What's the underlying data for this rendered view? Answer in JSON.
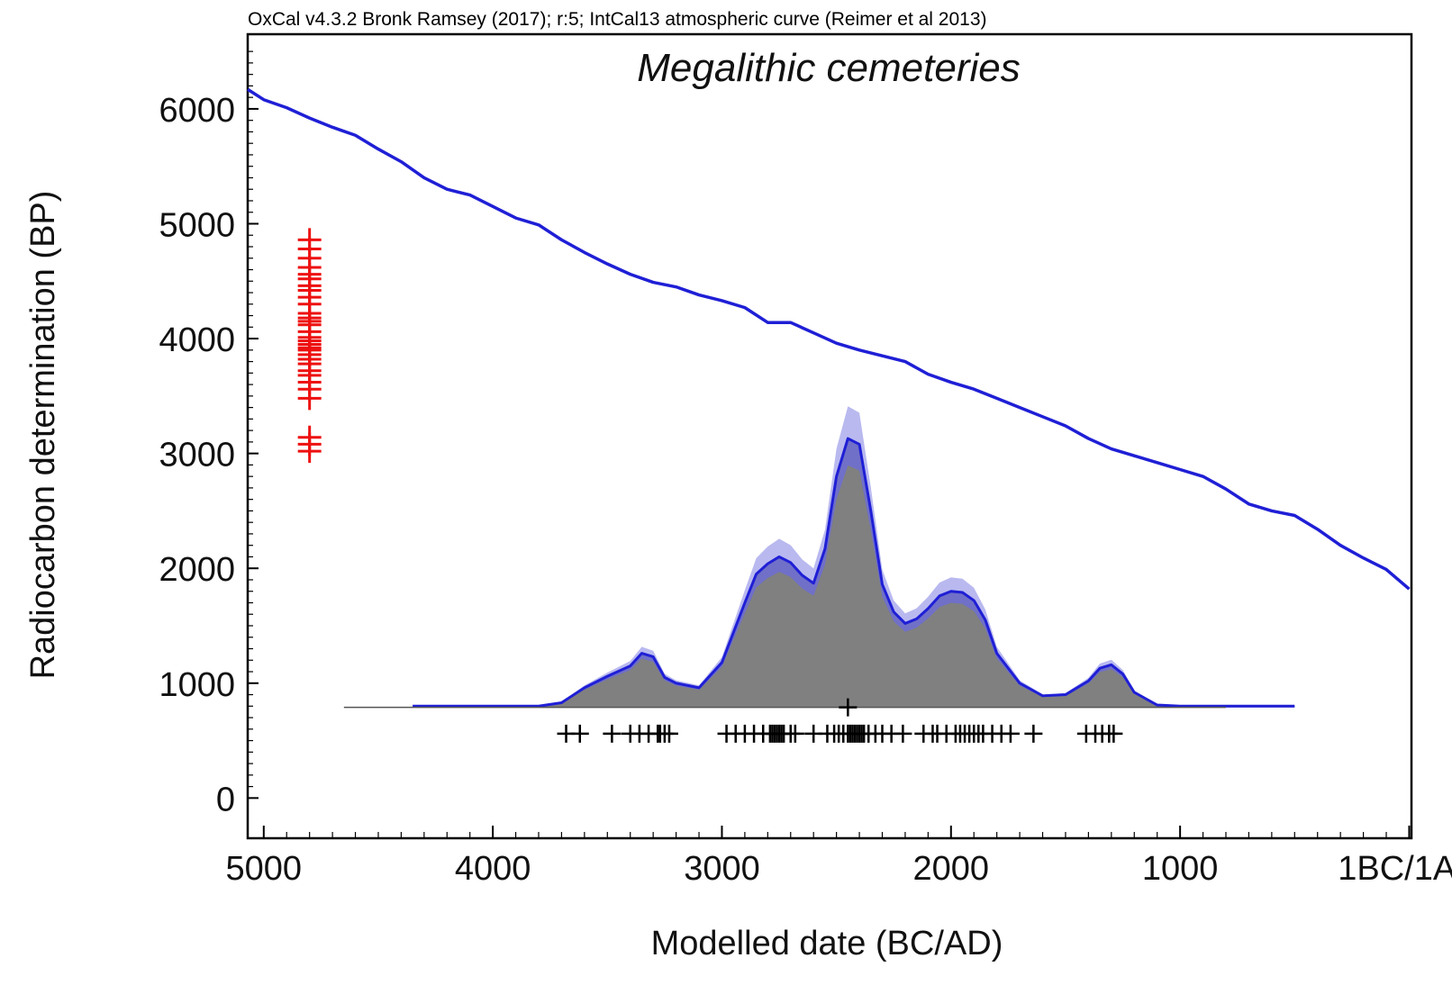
{
  "chart_data": {
    "type": "line",
    "header": "OxCal v4.3.2 Bronk Ramsey (2017); r:5; IntCal13 atmospheric curve (Reimer et al 2013)",
    "title": "Megalithic cemeteries",
    "xlabel": "Modelled date (BC/AD)",
    "ylabel": "Radiocarbon determination (BP)",
    "x_axis": {
      "range": [
        -5070,
        10
      ],
      "ticks": [
        -5000,
        -4000,
        -3000,
        -2000,
        -1000,
        0
      ],
      "tick_labels": [
        "5000",
        "4000",
        "3000",
        "2000",
        "1000",
        "1BC/1AD"
      ]
    },
    "y_axis": {
      "range": [
        -350,
        6650
      ],
      "ticks": [
        0,
        1000,
        2000,
        3000,
        4000,
        5000,
        6000
      ],
      "tick_labels": [
        "0",
        "1000",
        "2000",
        "3000",
        "4000",
        "5000",
        "6000"
      ]
    },
    "grid": false,
    "legend": "none",
    "colors": {
      "calibration_curve": "#1f1fd6",
      "sum_outline": "#1f1fd6",
      "sum_range": "#b9b9f0",
      "sum_modelled": "#7070c8",
      "sum_fill": "#808080",
      "c14_dates": "#ee1111",
      "date_markers": "#000000",
      "baseline": "#555555"
    },
    "series": [
      {
        "kind": "calibration_curve",
        "x": [
          -5070,
          -5000,
          -4900,
          -4800,
          -4700,
          -4600,
          -4500,
          -4400,
          -4300,
          -4200,
          -4100,
          -4000,
          -3900,
          -3800,
          -3700,
          -3600,
          -3500,
          -3400,
          -3300,
          -3200,
          -3100,
          -3000,
          -2900,
          -2800,
          -2700,
          -2600,
          -2500,
          -2400,
          -2300,
          -2200,
          -2100,
          -2000,
          -1900,
          -1800,
          -1700,
          -1600,
          -1500,
          -1400,
          -1300,
          -1200,
          -1100,
          -1000,
          -900,
          -800,
          -700,
          -600,
          -500,
          -400,
          -300,
          -200,
          -100,
          0
        ],
        "y": [
          6170,
          6080,
          6010,
          5920,
          5840,
          5770,
          5650,
          5540,
          5400,
          5300,
          5250,
          5150,
          5050,
          4990,
          4860,
          4750,
          4650,
          4560,
          4490,
          4450,
          4380,
          4330,
          4270,
          4140,
          4140,
          4050,
          3960,
          3900,
          3850,
          3800,
          3690,
          3620,
          3560,
          3480,
          3400,
          3320,
          3240,
          3130,
          3040,
          2980,
          2920,
          2860,
          2800,
          2690,
          2560,
          2500,
          2460,
          2340,
          2200,
          2090,
          1990,
          1820
        ]
      },
      {
        "kind": "summed_distribution",
        "x": [
          -4350,
          -4000,
          -3800,
          -3700,
          -3600,
          -3500,
          -3400,
          -3350,
          -3300,
          -3250,
          -3200,
          -3100,
          -3000,
          -2900,
          -2850,
          -2800,
          -2750,
          -2700,
          -2650,
          -2600,
          -2550,
          -2500,
          -2450,
          -2400,
          -2350,
          -2300,
          -2250,
          -2200,
          -2150,
          -2100,
          -2050,
          -2000,
          -1950,
          -1900,
          -1850,
          -1800,
          -1700,
          -1600,
          -1500,
          -1400,
          -1350,
          -1300,
          -1250,
          -1200,
          -1100,
          -1000,
          -500
        ],
        "y": [
          800,
          800,
          800,
          830,
          960,
          1060,
          1150,
          1260,
          1230,
          1050,
          1000,
          960,
          1180,
          1700,
          1950,
          2040,
          2100,
          2050,
          1940,
          1870,
          2170,
          2800,
          3130,
          3080,
          2500,
          1860,
          1620,
          1520,
          1560,
          1650,
          1760,
          1800,
          1790,
          1720,
          1550,
          1260,
          1000,
          890,
          900,
          1020,
          1130,
          1160,
          1080,
          920,
          810,
          800,
          800
        ]
      }
    ],
    "c14_dates": {
      "x": -4800,
      "values": [
        3020,
        3080,
        3140,
        3480,
        3560,
        3620,
        3680,
        3720,
        3780,
        3820,
        3860,
        3900,
        3920,
        3950,
        3980,
        4010,
        4060,
        4120,
        4150,
        4180,
        4220,
        4300,
        4360,
        4420,
        4460,
        4520,
        4560,
        4620,
        4700,
        4780,
        4860
      ]
    },
    "date_markers": {
      "y": 560,
      "x": [
        -3680,
        -3620,
        -3480,
        -3400,
        -3360,
        -3320,
        -3280,
        -3270,
        -3250,
        -3230,
        -2980,
        -2940,
        -2900,
        -2860,
        -2820,
        -2790,
        -2780,
        -2770,
        -2760,
        -2750,
        -2740,
        -2730,
        -2700,
        -2680,
        -2600,
        -2540,
        -2510,
        -2490,
        -2470,
        -2450,
        -2440,
        -2430,
        -2420,
        -2410,
        -2400,
        -2390,
        -2380,
        -2360,
        -2330,
        -2300,
        -2260,
        -2210,
        -2120,
        -2080,
        -2060,
        -2020,
        -1980,
        -1960,
        -1940,
        -1920,
        -1900,
        -1880,
        -1860,
        -1820,
        -1780,
        -1740,
        -1640,
        -1410,
        -1370,
        -1340,
        -1310,
        -1290
      ]
    },
    "mean_marker": {
      "x": -2450,
      "y": 790
    },
    "baseline": {
      "x": [
        -4650,
        -800
      ],
      "y": 790
    }
  }
}
